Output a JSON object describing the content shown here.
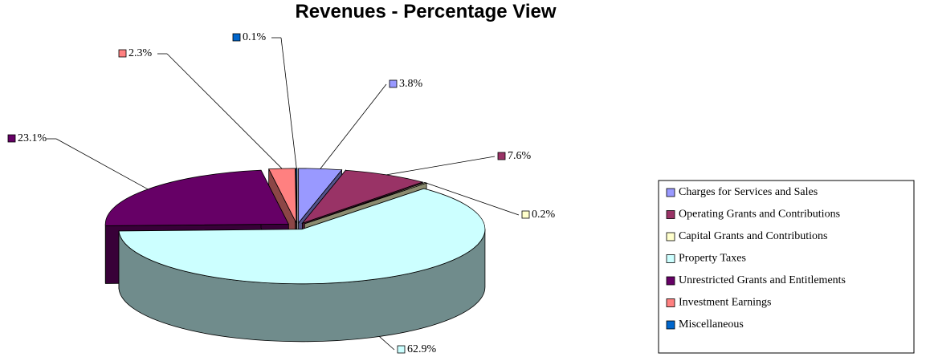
{
  "chart_data": {
    "type": "pie3d",
    "title": "Revenues - Percentage View",
    "categories": [
      "Charges for Services and Sales",
      "Operating Grants and Contributions",
      "Capital Grants and Contributions",
      "Property Taxes",
      "Unrestricted Grants and Entitlements",
      "Investment Earnings",
      "Miscellaneous"
    ],
    "values": [
      3.8,
      7.6,
      0.2,
      62.9,
      23.1,
      2.3,
      0.1
    ],
    "value_labels": [
      "3.8%",
      "7.6%",
      "0.2%",
      "62.9%",
      "23.1%",
      "2.3%",
      "0.1%"
    ],
    "colors": [
      "#9999ff",
      "#993366",
      "#ffffcc",
      "#ccffff",
      "#660066",
      "#ff8080",
      "#0066cc"
    ],
    "legend": "right"
  }
}
